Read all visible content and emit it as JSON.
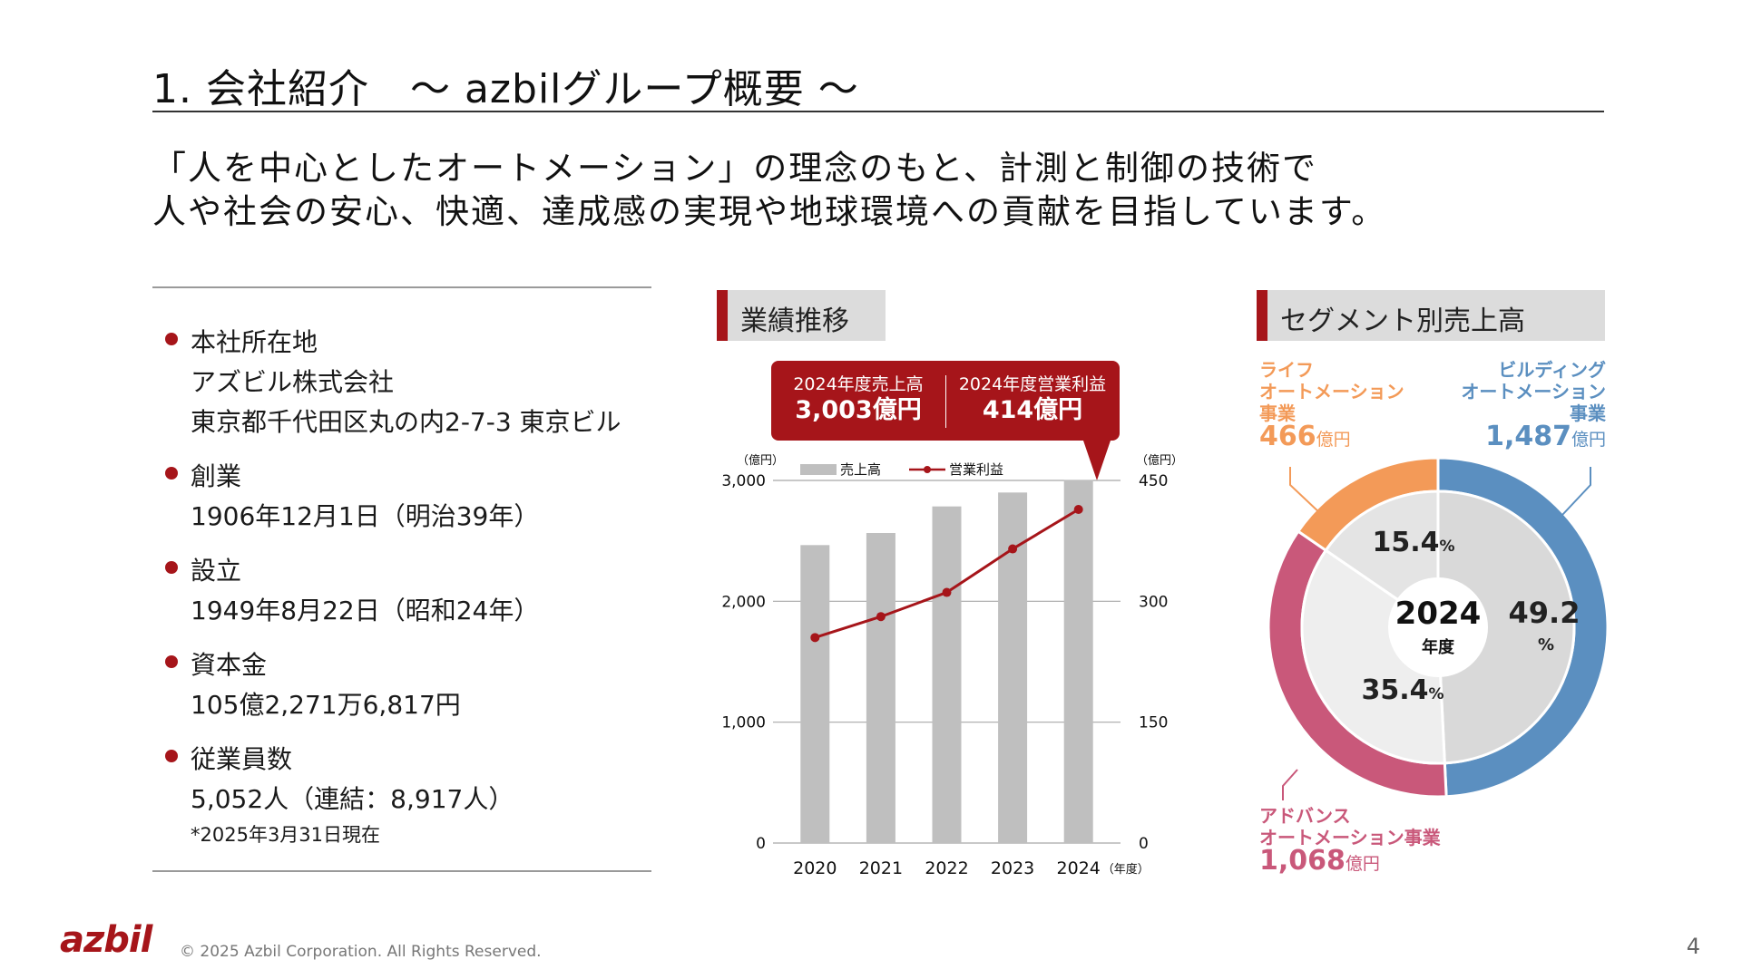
{
  "slide": {
    "title": "1. 会社紹介　～ azbilグループ概要 ～",
    "lead_lines": [
      "「人を中心としたオートメーション」の理念のもと、計測と制御の技術で",
      "人や社会の安心、快適、達成感の実現や地球環境への貢献を目指しています。"
    ]
  },
  "company_info": {
    "items": [
      {
        "label": "本社所在地",
        "lines": [
          "アズビル株式会社",
          "東京都千代田区丸の内2-7-3 東京ビル"
        ]
      },
      {
        "label": "創業",
        "lines": [
          "1906年12月1日（明治39年）"
        ]
      },
      {
        "label": "設立",
        "lines": [
          "1949年8月22日（昭和24年）"
        ]
      },
      {
        "label": "資本金",
        "lines": [
          "105億2,271万6,817円"
        ]
      },
      {
        "label": "従業員数",
        "lines": [
          "5,052人（連結：8,917人）"
        ]
      }
    ],
    "note": "*2025年3月31日現在"
  },
  "performance": {
    "heading": "業績推移",
    "callout": {
      "sales_label": "2024年度売上高",
      "sales_value": "3,003億円",
      "profit_label": "2024年度営業利益",
      "profit_value": "414億円"
    }
  },
  "segments": {
    "heading": "セグメント別売上高",
    "center_year": "2024",
    "center_unit": "年度",
    "items": [
      {
        "name_lines": [
          "ビルディング",
          "オートメーション",
          "事業"
        ],
        "amount": "1,487",
        "unit": "億円",
        "pct": "49.2",
        "pct_unit": "%",
        "color": "#5b8fc0",
        "value": 1487
      },
      {
        "name_lines": [
          "アドバンス",
          "オートメーション事業"
        ],
        "amount": "1,068",
        "unit": "億円",
        "pct": "35.4",
        "pct_unit": "%",
        "color": "#c9587a",
        "value": 1068
      },
      {
        "name_lines": [
          "ライフ",
          "オートメーション",
          "事業"
        ],
        "amount": "466",
        "unit": "億円",
        "pct": "15.4",
        "pct_unit": "%",
        "color": "#f39a58",
        "value": 466
      }
    ]
  },
  "chart_data": [
    {
      "type": "bar",
      "categories": [
        "2020",
        "2021",
        "2022",
        "2023",
        "2024"
      ],
      "x_unit": "（年度）",
      "series": [
        {
          "name": "売上高",
          "type": "bar",
          "axis": "left",
          "values": [
            2465,
            2565,
            2785,
            2900,
            3003
          ],
          "color": "#bfbfbf"
        },
        {
          "name": "営業利益",
          "type": "line",
          "axis": "right",
          "values": [
            255,
            281,
            311,
            365,
            414
          ],
          "color": "#a6151a"
        }
      ],
      "y_left": {
        "unit": "（億円）",
        "ticks": [
          "0",
          "1,000",
          "2,000",
          "3,000"
        ],
        "tick_values": [
          0,
          1000,
          2000,
          3000
        ],
        "ylim": [
          0,
          3000
        ]
      },
      "y_right": {
        "unit": "（億円）",
        "ticks": [
          "0",
          "150",
          "300",
          "450"
        ],
        "tick_values": [
          0,
          150,
          300,
          450
        ],
        "ylim": [
          0,
          450
        ]
      },
      "grid": true,
      "legend_position": "top"
    },
    {
      "type": "pie",
      "categories": [
        "ビルディングオートメーション事業",
        "アドバンスオートメーション事業",
        "ライフオートメーション事業"
      ],
      "values": [
        49.2,
        35.4,
        15.4
      ],
      "amounts": [
        1487,
        1068,
        466
      ],
      "year": "2024年度"
    }
  ],
  "footer": {
    "logo": "azbil",
    "copyright": "© 2025 Azbil Corporation. All Rights Reserved.",
    "page": "4"
  }
}
